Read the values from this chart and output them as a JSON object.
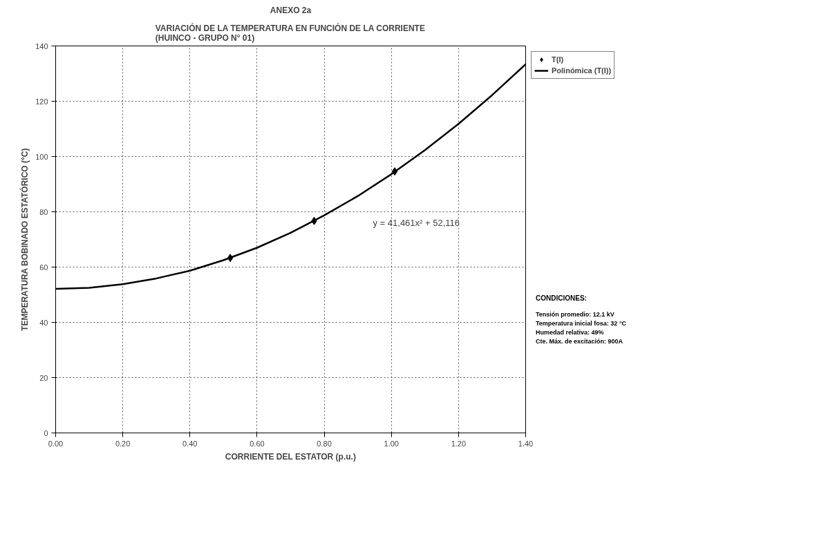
{
  "chart_data": {
    "type": "scatter",
    "title": "ANEXO 2a",
    "subtitle": "VARIACIÓN DE LA TEMPERATURA EN FUNCIÓN DE LA CORRIENTE\n(HUINCO - GRUPO N° 01)",
    "xlabel": "CORRIENTE DEL ESTATOR (p.u.)",
    "ylabel": "TEMPERATURA BOBINADO ESTATÓRICO (°C)",
    "series": [
      {
        "name": "T(I)",
        "marker": "diamond",
        "color": "#000000",
        "x": [
          0.52,
          0.77,
          1.01
        ],
        "values": [
          63.3,
          76.7,
          94.6
        ]
      },
      {
        "name": "Polinómica (T(I))",
        "type": "line",
        "marker": "none",
        "line_style": "solid",
        "color": "#000000",
        "x": [
          0.0,
          0.1,
          0.2,
          0.3,
          0.4,
          0.5,
          0.6,
          0.7,
          0.8,
          0.9,
          1.0,
          1.1,
          1.2,
          1.3,
          1.4
        ],
        "values": [
          52.1,
          52.5,
          53.8,
          55.9,
          58.7,
          62.5,
          67.0,
          72.4,
          78.7,
          85.7,
          93.6,
          102.3,
          111.8,
          122.2,
          133.4
        ]
      }
    ],
    "annotations": [
      "y = 41,461x² + 52,116",
      "CONDICIONES:",
      "Tensión promedio: 12.1 kV",
      "Temperatura inicial fosa: 32 °C",
      "Humedad relativa: 49%",
      "Cte. Máx. de excitación: 900A"
    ],
    "xlim": [
      0,
      1.4
    ],
    "ylim": [
      0,
      140
    ],
    "xticks": [
      {
        "value": 0,
        "label": "0.00"
      },
      {
        "value": 0.2,
        "label": "0.20"
      },
      {
        "value": 0.4,
        "label": "0.40"
      },
      {
        "value": 0.6,
        "label": "0.60"
      },
      {
        "value": 0.8,
        "label": "0.80"
      },
      {
        "value": 1.0,
        "label": "1.00"
      },
      {
        "value": 1.2,
        "label": "1.20"
      },
      {
        "value": 1.4,
        "label": "1.40"
      }
    ],
    "yticks": [
      0,
      20,
      40,
      60,
      80,
      100,
      120,
      140
    ],
    "grid": true,
    "legend": "right"
  }
}
